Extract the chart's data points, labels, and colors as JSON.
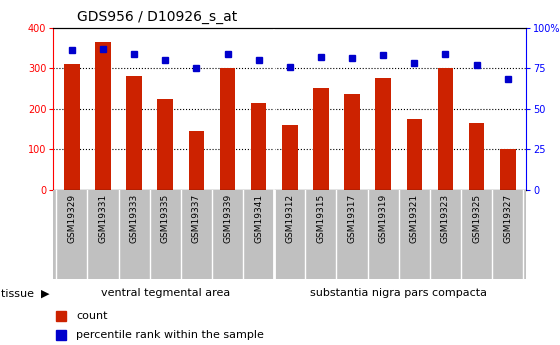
{
  "title": "GDS956 / D10926_s_at",
  "samples": [
    "GSM19329",
    "GSM19331",
    "GSM19333",
    "GSM19335",
    "GSM19337",
    "GSM19339",
    "GSM19341",
    "GSM19312",
    "GSM19315",
    "GSM19317",
    "GSM19319",
    "GSM19321",
    "GSM19323",
    "GSM19325",
    "GSM19327"
  ],
  "counts": [
    310,
    365,
    280,
    225,
    145,
    300,
    215,
    160,
    250,
    235,
    275,
    175,
    300,
    165,
    100
  ],
  "percentiles": [
    86,
    87,
    84,
    80,
    75,
    84,
    80,
    76,
    82,
    81,
    83,
    78,
    84,
    77,
    68
  ],
  "group_boundary": 7,
  "group_labels": [
    "ventral tegmental area",
    "substantia nigra pars compacta"
  ],
  "bar_color": "#CC2200",
  "dot_color": "#0000CC",
  "ylim_left": [
    0,
    400
  ],
  "ylim_right": [
    0,
    100
  ],
  "yticks_left": [
    0,
    100,
    200,
    300,
    400
  ],
  "yticks_right": [
    0,
    25,
    50,
    75,
    100
  ],
  "ytick_labels_right": [
    "0",
    "25",
    "50",
    "75",
    "100%"
  ],
  "grid_values": [
    100,
    200,
    300
  ],
  "legend_count_label": "count",
  "legend_pct_label": "percentile rank within the sample",
  "tissue_label": "tissue",
  "tissue_row_color": "#90EE90",
  "sample_row_color": "#C0C0C0",
  "plot_bg_color": "#FFFFFF",
  "fig_bg_color": "#FFFFFF",
  "bar_width": 0.5
}
